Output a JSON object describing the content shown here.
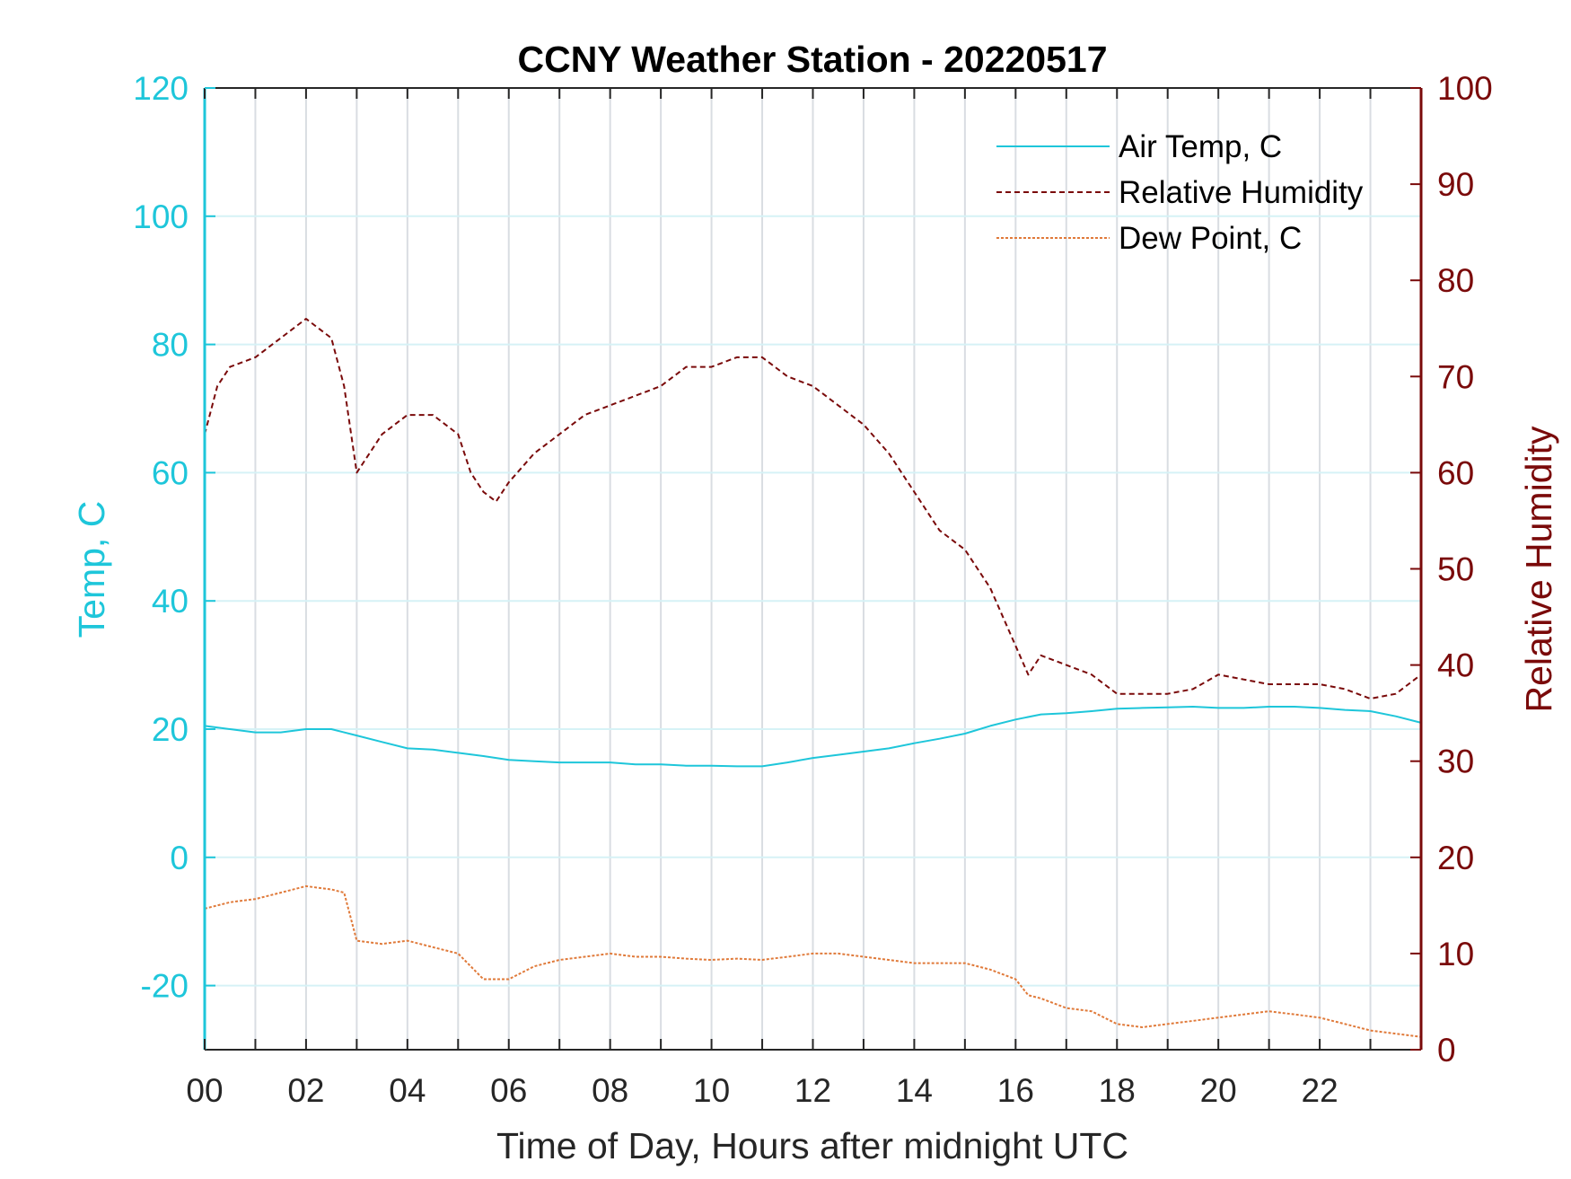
{
  "chart_data": {
    "type": "line",
    "title": "CCNY Weather Station - 20220517",
    "xlabel": "Time of Day, Hours after midnight UTC",
    "ylabel_left": "Temp, C",
    "ylabel_right": "Relative Humidity",
    "xlim": [
      0,
      24
    ],
    "ylim_left": [
      -30,
      120
    ],
    "ylim_right": [
      0,
      100
    ],
    "x_ticks": [
      0,
      2,
      4,
      6,
      8,
      10,
      12,
      14,
      16,
      18,
      20,
      22
    ],
    "x_tick_labels": [
      "00",
      "02",
      "04",
      "06",
      "08",
      "10",
      "12",
      "14",
      "16",
      "18",
      "20",
      "22"
    ],
    "y_left_ticks": [
      -20,
      0,
      20,
      40,
      60,
      80,
      100,
      120
    ],
    "y_left_tick_labels": [
      "-20",
      "0",
      "20",
      "40",
      "60",
      "80",
      "100",
      "120"
    ],
    "y_right_ticks": [
      0,
      10,
      20,
      30,
      40,
      50,
      60,
      70,
      80,
      90,
      100
    ],
    "y_right_tick_labels": [
      "0",
      "10",
      "20",
      "30",
      "40",
      "50",
      "60",
      "70",
      "80",
      "90",
      "100"
    ],
    "grid": true,
    "legend_position": "top-right",
    "colors": {
      "left_axis": "#1ec6da",
      "right_axis": "#7a0a0a",
      "air_temp": "#1ec6da",
      "humidity": "#7a0a0a",
      "dew_point": "#e07a3a",
      "grid": "#d9dde2"
    },
    "series": [
      {
        "name": "Air Temp, C",
        "axis": "left",
        "style": "solid",
        "x": [
          0,
          0.5,
          1,
          1.5,
          2,
          2.5,
          3,
          3.5,
          4,
          4.5,
          5,
          5.5,
          6,
          6.5,
          7,
          7.5,
          8,
          8.5,
          9,
          9.5,
          10,
          10.5,
          11,
          11.5,
          12,
          12.5,
          13,
          13.5,
          14,
          14.5,
          15,
          15.5,
          16,
          16.5,
          17,
          17.5,
          18,
          18.5,
          19,
          19.5,
          20,
          20.5,
          21,
          21.5,
          22,
          22.5,
          23,
          23.5,
          24
        ],
        "values": [
          20.5,
          20,
          19.5,
          19.5,
          20,
          20,
          19,
          18,
          17,
          16.8,
          16.3,
          15.8,
          15.2,
          15,
          14.8,
          14.8,
          14.8,
          14.5,
          14.5,
          14.3,
          14.3,
          14.2,
          14.2,
          14.8,
          15.5,
          16,
          16.5,
          17,
          17.8,
          18.5,
          19.3,
          20.5,
          21.5,
          22.3,
          22.5,
          22.8,
          23.2,
          23.3,
          23.4,
          23.5,
          23.3,
          23.3,
          23.5,
          23.5,
          23.3,
          23,
          22.8,
          22,
          21
        ]
      },
      {
        "name": "Relative Humidity",
        "axis": "right",
        "style": "dashed",
        "x": [
          0,
          0.25,
          0.5,
          1,
          1.5,
          2,
          2.5,
          2.75,
          3,
          3.25,
          3.5,
          4,
          4.5,
          5,
          5.25,
          5.5,
          5.75,
          6,
          6.5,
          7,
          7.5,
          8,
          8.5,
          9,
          9.5,
          10,
          10.5,
          11,
          11.5,
          12,
          12.5,
          13,
          13.5,
          14,
          14.5,
          15,
          15.5,
          16,
          16.25,
          16.5,
          17,
          17.5,
          18,
          18.5,
          19,
          19.5,
          20,
          20.5,
          21,
          21.5,
          22,
          22.5,
          23,
          23.5,
          24
        ],
        "values": [
          64,
          69,
          71,
          72,
          74,
          76,
          74,
          69,
          60,
          62,
          64,
          66,
          66,
          64,
          60,
          58,
          57,
          59,
          62,
          64,
          66,
          67,
          68,
          69,
          71,
          71,
          72,
          72,
          70,
          69,
          67,
          65,
          62,
          58,
          54,
          52,
          48,
          42,
          39,
          41,
          40,
          39,
          37,
          37,
          37,
          37.5,
          39,
          38.5,
          38,
          38,
          38,
          37.5,
          36.5,
          37,
          39
        ]
      },
      {
        "name": "Dew Point, C",
        "axis": "left",
        "style": "dotted",
        "x": [
          0,
          0.5,
          1,
          1.5,
          2,
          2.5,
          2.75,
          3,
          3.5,
          4,
          4.5,
          5,
          5.25,
          5.5,
          6,
          6.5,
          7,
          7.5,
          8,
          8.5,
          9,
          9.5,
          10,
          10.5,
          11,
          11.5,
          12,
          12.5,
          13,
          13.5,
          14,
          14.5,
          15,
          15.5,
          16,
          16.25,
          16.5,
          17,
          17.5,
          18,
          18.5,
          19,
          19.5,
          20,
          20.5,
          21,
          21.5,
          22,
          22.5,
          23,
          23.5,
          24
        ],
        "values": [
          -8,
          -7,
          -6.5,
          -5.5,
          -4.5,
          -5,
          -5.5,
          -13,
          -13.5,
          -13,
          -14,
          -15,
          -17,
          -19,
          -19,
          -17,
          -16,
          -15.5,
          -15,
          -15.5,
          -15.5,
          -15.8,
          -16,
          -15.8,
          -16,
          -15.5,
          -15,
          -15,
          -15.5,
          -16,
          -16.5,
          -16.5,
          -16.5,
          -17.5,
          -19,
          -21.5,
          -22,
          -23.5,
          -24,
          -26,
          -26.5,
          -26,
          -25.5,
          -25,
          -24.5,
          -24,
          -24.5,
          -25,
          -26,
          -27,
          -27.5,
          -28
        ]
      }
    ]
  }
}
